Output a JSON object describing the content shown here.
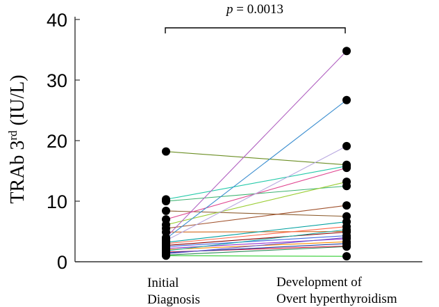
{
  "chart_data": {
    "type": "paired-scatter",
    "ylabel_main": "TRAb 3",
    "ylabel_sup": "rd",
    "ylabel_unit": " (IU/L)",
    "ylim": [
      0,
      40
    ],
    "yticks": [
      "0",
      "10",
      "20",
      "30",
      "40"
    ],
    "categories": [
      {
        "lines": [
          "Initial",
          "Diagnosis"
        ]
      },
      {
        "lines": [
          "Development of",
          "Overt hyperthyroidism"
        ]
      }
    ],
    "annotation": {
      "p_italic": "p",
      "p_rest": " = 0.0013"
    },
    "pairs": [
      {
        "initial": 18.2,
        "overt": 16.0,
        "color": "#6b8e23"
      },
      {
        "initial": 10.3,
        "overt": 15.8,
        "color": "#22c9a8"
      },
      {
        "initial": 10.0,
        "overt": 12.5,
        "color": "#3cb371"
      },
      {
        "initial": 8.4,
        "overt": 7.5,
        "color": "#8b5a2b"
      },
      {
        "initial": 7.0,
        "overt": 15.5,
        "color": "#e0448f"
      },
      {
        "initial": 6.1,
        "overt": 13.2,
        "color": "#9acd32"
      },
      {
        "initial": 5.5,
        "overt": 9.3,
        "color": "#a0522d"
      },
      {
        "initial": 4.9,
        "overt": 5.0,
        "color": "#d2691e"
      },
      {
        "initial": 4.0,
        "overt": 34.8,
        "color": "#b060c0"
      },
      {
        "initial": 3.8,
        "overt": 26.7,
        "color": "#3d8fd0"
      },
      {
        "initial": 3.5,
        "overt": 19.1,
        "color": "#b8a8e0"
      },
      {
        "initial": 3.2,
        "overt": 6.6,
        "color": "#00a0a0"
      },
      {
        "initial": 3.0,
        "overt": 5.8,
        "color": "#ff6347"
      },
      {
        "initial": 2.7,
        "overt": 4.9,
        "color": "#8b0000"
      },
      {
        "initial": 2.5,
        "overt": 4.3,
        "color": "#4169e1"
      },
      {
        "initial": 2.2,
        "overt": 3.8,
        "color": "#9932cc"
      },
      {
        "initial": 2.0,
        "overt": 3.3,
        "color": "#ff8c00"
      },
      {
        "initial": 1.8,
        "overt": 5.3,
        "color": "#20b2aa"
      },
      {
        "initial": 1.6,
        "overt": 2.6,
        "color": "#dc143c"
      },
      {
        "initial": 1.5,
        "overt": 3.0,
        "color": "#1e3fa0"
      },
      {
        "initial": 1.3,
        "overt": 4.0,
        "color": "#6a5acd"
      },
      {
        "initial": 1.1,
        "overt": 2.5,
        "color": "#2e8b57"
      },
      {
        "initial": 1.0,
        "overt": 0.9,
        "color": "#32cd32"
      }
    ]
  }
}
